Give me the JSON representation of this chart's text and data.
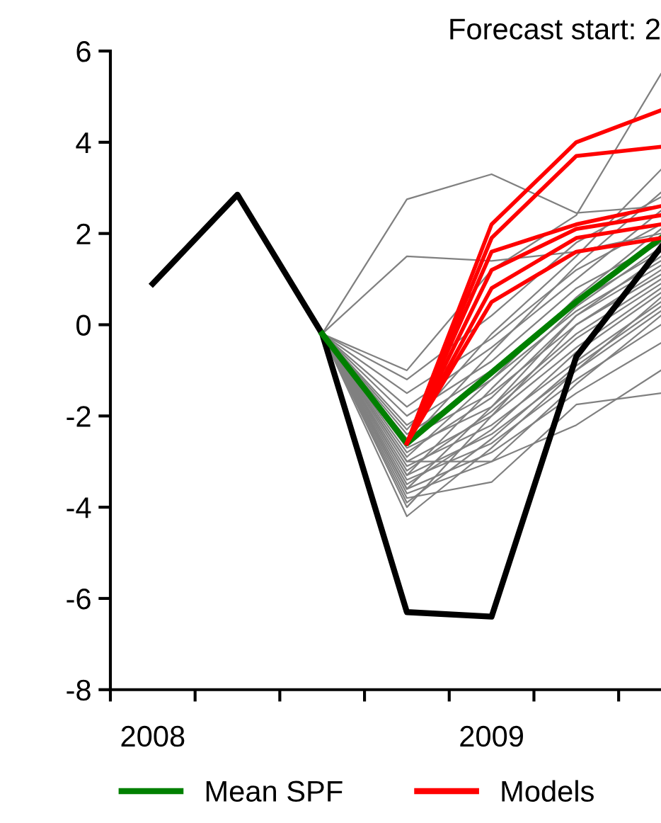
{
  "chart_data": {
    "type": "line",
    "title": "Forecast start: 2",
    "xlim": [
      2008,
      2009.625
    ],
    "ylim": [
      -8,
      6
    ],
    "yticks": [
      -8,
      -6,
      -4,
      -2,
      0,
      2,
      4,
      6
    ],
    "xticks": [
      {
        "value": 2008,
        "label": null
      },
      {
        "value": 2008.25,
        "label": null
      },
      {
        "value": 2008.5,
        "label": null
      },
      {
        "value": 2008.75,
        "label": null
      },
      {
        "value": 2009,
        "label": null
      },
      {
        "value": 2009.25,
        "label": null
      },
      {
        "value": 2009.5,
        "label": null
      },
      {
        "value": 2008.125,
        "label": "2008"
      },
      {
        "value": 2009.125,
        "label": "2009"
      }
    ],
    "grid": false,
    "legend": "bottom",
    "marker": "none",
    "line_style": "solid",
    "series": [
      {
        "color": "#808080",
        "x": [
          2008.625,
          2008.875,
          2009.125,
          2009.375,
          2009.625
        ],
        "values": [
          -0.2,
          2.75,
          3.3,
          2.45,
          2.6
        ]
      },
      {
        "color": "#808080",
        "x": [
          2008.625,
          2008.875,
          2009.125,
          2009.375,
          2009.625
        ],
        "values": [
          -0.2,
          1.5,
          1.4,
          1.6,
          2.0
        ]
      },
      {
        "color": "#808080",
        "x": [
          2008.625,
          2008.875,
          2009.125,
          2009.375,
          2009.625
        ],
        "values": [
          -0.2,
          -1.0,
          1.2,
          2.4,
          5.5
        ]
      },
      {
        "color": "#808080",
        "x": [
          2008.625,
          2008.875,
          2009.125,
          2009.375,
          2009.625
        ],
        "values": [
          -0.2,
          -1.2,
          0.2,
          1.8,
          2.8
        ]
      },
      {
        "color": "#808080",
        "x": [
          2008.625,
          2008.875,
          2009.125,
          2009.375,
          2009.625
        ],
        "values": [
          -0.2,
          -1.5,
          -0.3,
          1.2,
          2.2
        ]
      },
      {
        "color": "#808080",
        "x": [
          2008.625,
          2008.875,
          2009.125,
          2009.375,
          2009.625
        ],
        "values": [
          -0.2,
          -1.8,
          -0.5,
          1.0,
          2.5
        ]
      },
      {
        "color": "#808080",
        "x": [
          2008.625,
          2008.875,
          2009.125,
          2009.375,
          2009.625
        ],
        "values": [
          -0.2,
          -2.0,
          -0.8,
          0.8,
          1.8
        ]
      },
      {
        "color": "#808080",
        "x": [
          2008.625,
          2008.875,
          2009.125,
          2009.375,
          2009.625
        ],
        "values": [
          -0.2,
          -2.2,
          -1.0,
          0.5,
          1.6
        ]
      },
      {
        "color": "#808080",
        "x": [
          2008.625,
          2008.875,
          2009.125,
          2009.375,
          2009.625
        ],
        "values": [
          -0.2,
          -2.4,
          -1.2,
          0.3,
          1.4
        ]
      },
      {
        "color": "#808080",
        "x": [
          2008.625,
          2008.875,
          2009.125,
          2009.375,
          2009.625
        ],
        "values": [
          -0.2,
          -2.5,
          -1.5,
          0.0,
          1.2
        ]
      },
      {
        "color": "#808080",
        "x": [
          2008.625,
          2008.875,
          2009.125,
          2009.375,
          2009.625
        ],
        "values": [
          -0.2,
          -2.7,
          -1.8,
          -0.2,
          1.0
        ]
      },
      {
        "color": "#808080",
        "x": [
          2008.625,
          2008.875,
          2009.125,
          2009.375,
          2009.625
        ],
        "values": [
          -0.2,
          -2.8,
          -1.6,
          0.2,
          1.5
        ]
      },
      {
        "color": "#808080",
        "x": [
          2008.625,
          2008.875,
          2009.125,
          2009.375,
          2009.625
        ],
        "values": [
          -0.2,
          -3.0,
          -2.0,
          -0.5,
          0.8
        ]
      },
      {
        "color": "#808080",
        "x": [
          2008.625,
          2008.875,
          2009.125,
          2009.375,
          2009.625
        ],
        "values": [
          -0.2,
          -3.1,
          -2.2,
          -0.8,
          0.5
        ]
      },
      {
        "color": "#808080",
        "x": [
          2008.625,
          2008.875,
          2009.125,
          2009.375,
          2009.625
        ],
        "values": [
          -0.2,
          -3.2,
          -1.9,
          -0.3,
          0.9
        ]
      },
      {
        "color": "#808080",
        "x": [
          2008.625,
          2008.875,
          2009.125,
          2009.375,
          2009.625
        ],
        "values": [
          -0.2,
          -3.3,
          -2.4,
          -1.0,
          0.3
        ]
      },
      {
        "color": "#808080",
        "x": [
          2008.625,
          2008.875,
          2009.125,
          2009.375,
          2009.625
        ],
        "values": [
          -0.2,
          -3.4,
          -2.6,
          -1.2,
          0.0
        ]
      },
      {
        "color": "#808080",
        "x": [
          2008.625,
          2008.875,
          2009.125,
          2009.375,
          2009.625
        ],
        "values": [
          -0.2,
          -3.5,
          -2.3,
          -0.6,
          0.7
        ]
      },
      {
        "color": "#808080",
        "x": [
          2008.625,
          2008.875,
          2009.125,
          2009.375,
          2009.625
        ],
        "values": [
          -0.2,
          -3.6,
          -2.8,
          -1.5,
          -0.4
        ]
      },
      {
        "color": "#808080",
        "x": [
          2008.625,
          2008.875,
          2009.125,
          2009.375,
          2009.625
        ],
        "values": [
          -0.2,
          -3.7,
          -3.0,
          -1.3,
          0.2
        ]
      },
      {
        "color": "#808080",
        "x": [
          2008.625,
          2008.875,
          2009.125,
          2009.375,
          2009.625
        ],
        "values": [
          -0.2,
          -3.8,
          -3.45,
          -1.75,
          -1.5
        ]
      },
      {
        "color": "#808080",
        "x": [
          2008.625,
          2008.875,
          2009.125,
          2009.375,
          2009.625
        ],
        "values": [
          -0.2,
          -3.9,
          -2.5,
          -0.9,
          0.4
        ]
      },
      {
        "color": "#808080",
        "x": [
          2008.625,
          2008.875,
          2009.125,
          2009.375,
          2009.625
        ],
        "values": [
          -0.2,
          -4.0,
          -2.0,
          0.0,
          1.1
        ]
      },
      {
        "color": "#808080",
        "x": [
          2008.625,
          2008.875,
          2009.125,
          2009.375,
          2009.625
        ],
        "values": [
          -0.2,
          -4.2,
          -2.7,
          -1.0,
          0.6
        ]
      },
      {
        "color": "#808080",
        "x": [
          2008.625,
          2008.875,
          2009.125,
          2009.375,
          2009.625
        ],
        "values": [
          -0.2,
          -2.6,
          -0.6,
          1.3,
          2.9
        ]
      },
      {
        "color": "#808080",
        "x": [
          2008.625,
          2008.875,
          2009.125,
          2009.375,
          2009.625
        ],
        "values": [
          -0.2,
          -2.9,
          -1.2,
          0.6,
          2.1
        ]
      },
      {
        "color": "#808080",
        "x": [
          2008.625,
          2008.875,
          2009.125,
          2009.375,
          2009.625
        ],
        "values": [
          -0.2,
          -3.3,
          -1.4,
          0.4,
          1.7
        ]
      },
      {
        "color": "#808080",
        "x": [
          2008.625,
          2008.875,
          2009.125,
          2009.375,
          2009.625
        ],
        "values": [
          -0.2,
          -2.3,
          -0.2,
          1.5,
          3.4
        ]
      },
      {
        "color": "#808080",
        "x": [
          2008.625,
          2008.875,
          2009.125,
          2009.375,
          2009.625
        ],
        "values": [
          -0.2,
          -3.0,
          -3.0,
          -2.2,
          -1.0
        ]
      },
      {
        "color": "#808080",
        "x": [
          2008.625,
          2008.875,
          2009.125,
          2009.375,
          2009.625
        ],
        "values": [
          -0.2,
          -3.6,
          -1.8,
          0.2,
          1.3
        ]
      },
      {
        "color": "#000000",
        "x": [
          2008.125,
          2008.375,
          2008.625,
          2008.875,
          2009.125,
          2009.375,
          2009.625
        ],
        "values": [
          0.9,
          2.85,
          -0.2,
          -6.3,
          -6.4,
          -0.7,
          1.7
        ]
      },
      {
        "name": "Mean SPF",
        "color": "#008000",
        "x": [
          2008.625,
          2008.875,
          2009.125,
          2009.375,
          2009.625
        ],
        "values": [
          -0.2,
          -2.6,
          -1.05,
          0.5,
          1.9
        ]
      },
      {
        "name": "Models",
        "color": "#ff0000",
        "x": [
          2008.875,
          2009.125,
          2009.375,
          2009.625
        ],
        "values": [
          -2.6,
          2.2,
          4.0,
          4.7
        ]
      },
      {
        "color": "#ff0000",
        "x": [
          2008.875,
          2009.125,
          2009.375,
          2009.625
        ],
        "values": [
          -2.6,
          1.9,
          3.7,
          3.9
        ]
      },
      {
        "color": "#ff0000",
        "x": [
          2008.875,
          2009.125,
          2009.375,
          2009.625
        ],
        "values": [
          -2.6,
          1.6,
          2.2,
          2.6
        ]
      },
      {
        "color": "#ff0000",
        "x": [
          2008.875,
          2009.125,
          2009.375,
          2009.625
        ],
        "values": [
          -2.6,
          1.2,
          2.1,
          2.4
        ]
      },
      {
        "color": "#ff0000",
        "x": [
          2008.875,
          2009.125,
          2009.375,
          2009.625
        ],
        "values": [
          -2.6,
          0.8,
          1.9,
          2.2
        ]
      },
      {
        "color": "#ff0000",
        "x": [
          2008.875,
          2009.125,
          2009.375,
          2009.625
        ],
        "values": [
          -2.6,
          0.5,
          1.6,
          1.9
        ]
      }
    ]
  }
}
